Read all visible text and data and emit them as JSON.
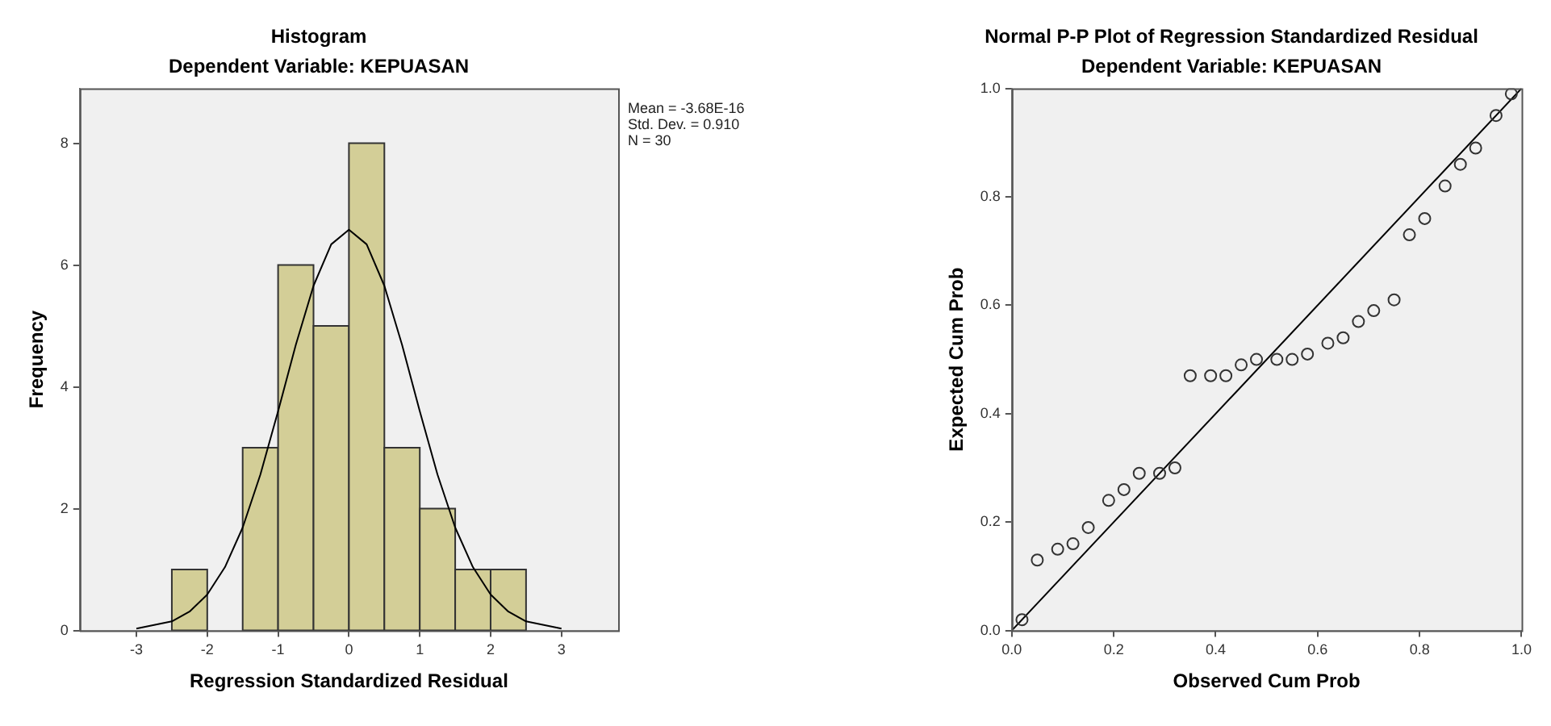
{
  "chart_data": [
    {
      "type": "histogram",
      "title": "Histogram",
      "subtitle": "Dependent Variable: KEPUASAN",
      "xlabel": "Regression Standardized Residual",
      "ylabel": "Frequency",
      "bins": [
        -2.5,
        -2,
        -1.5,
        -1,
        -0.5,
        0,
        0.5,
        1,
        1.5,
        2,
        2.5
      ],
      "series": [
        {
          "color": "#d3ce97",
          "values": [
            1,
            0,
            3,
            6,
            5,
            8,
            3,
            2,
            1,
            1
          ]
        },
        {
          "type": "line",
          "color": "#000000",
          "x": [
            -3,
            -2.5,
            -2.25,
            -2,
            -1.75,
            -1.5,
            -1.25,
            -1,
            -0.75,
            -0.5,
            -0.25,
            0,
            0.25,
            0.5,
            0.75,
            1,
            1.25,
            1.5,
            1.75,
            2,
            2.25,
            2.5,
            3
          ],
          "values": [
            0.03,
            0.15,
            0.31,
            0.59,
            1.04,
            1.69,
            2.56,
            3.6,
            4.69,
            5.66,
            6.34,
            6.58,
            6.34,
            5.66,
            4.69,
            3.6,
            2.56,
            1.69,
            1.04,
            0.59,
            0.31,
            0.15,
            0.03
          ]
        }
      ],
      "xlim": [
        -3.8,
        3.8
      ],
      "xticks": [
        -3,
        -2,
        -1,
        0,
        1,
        2,
        3
      ],
      "ylim": [
        0,
        8.9
      ],
      "yticks": [
        0,
        2,
        4,
        6,
        8
      ],
      "annotations": [
        "Mean = -3.68E-16",
        "Std. Dev. = 0.910",
        "N = 30"
      ],
      "grid": false,
      "legend": false
    },
    {
      "type": "scatter",
      "title": "Normal P-P Plot of Regression Standardized Residual",
      "subtitle": "Dependent Variable: KEPUASAN",
      "xlabel": "Observed Cum Prob",
      "ylabel": "Expected Cum Prob",
      "series": [
        {
          "color": "#333333",
          "marker": "circle",
          "x": [
            0.02,
            0.05,
            0.09,
            0.12,
            0.15,
            0.19,
            0.22,
            0.25,
            0.29,
            0.32,
            0.35,
            0.39,
            0.42,
            0.45,
            0.48,
            0.52,
            0.55,
            0.58,
            0.62,
            0.65,
            0.68,
            0.71,
            0.75,
            0.78,
            0.81,
            0.85,
            0.88,
            0.91,
            0.95,
            0.98
          ],
          "values": [
            0.02,
            0.13,
            0.15,
            0.16,
            0.19,
            0.24,
            0.26,
            0.29,
            0.29,
            0.3,
            0.47,
            0.47,
            0.47,
            0.49,
            0.5,
            0.5,
            0.5,
            0.51,
            0.53,
            0.54,
            0.57,
            0.59,
            0.61,
            0.73,
            0.76,
            0.82,
            0.86,
            0.89,
            0.95,
            0.99
          ]
        },
        {
          "type": "line",
          "color": "#000000",
          "x": [
            0,
            1
          ],
          "values": [
            0,
            1
          ]
        }
      ],
      "xlim": [
        0,
        1
      ],
      "xticks": [
        {
          "value": 0,
          "label": "0.0"
        },
        {
          "value": 0.2,
          "label": "0.2"
        },
        {
          "value": 0.4,
          "label": "0.4"
        },
        {
          "value": 0.6,
          "label": "0.6"
        },
        {
          "value": 0.8,
          "label": "0.8"
        },
        {
          "value": 1,
          "label": "1.0"
        }
      ],
      "ylim": [
        0,
        1
      ],
      "yticks": [
        {
          "value": 0,
          "label": "0.0"
        },
        {
          "value": 0.2,
          "label": "0.2"
        },
        {
          "value": 0.4,
          "label": "0.4"
        },
        {
          "value": 0.6,
          "label": "0.6"
        },
        {
          "value": 0.8,
          "label": "0.8"
        },
        {
          "value": 1,
          "label": "1.0"
        }
      ],
      "grid": false,
      "legend": false
    }
  ]
}
